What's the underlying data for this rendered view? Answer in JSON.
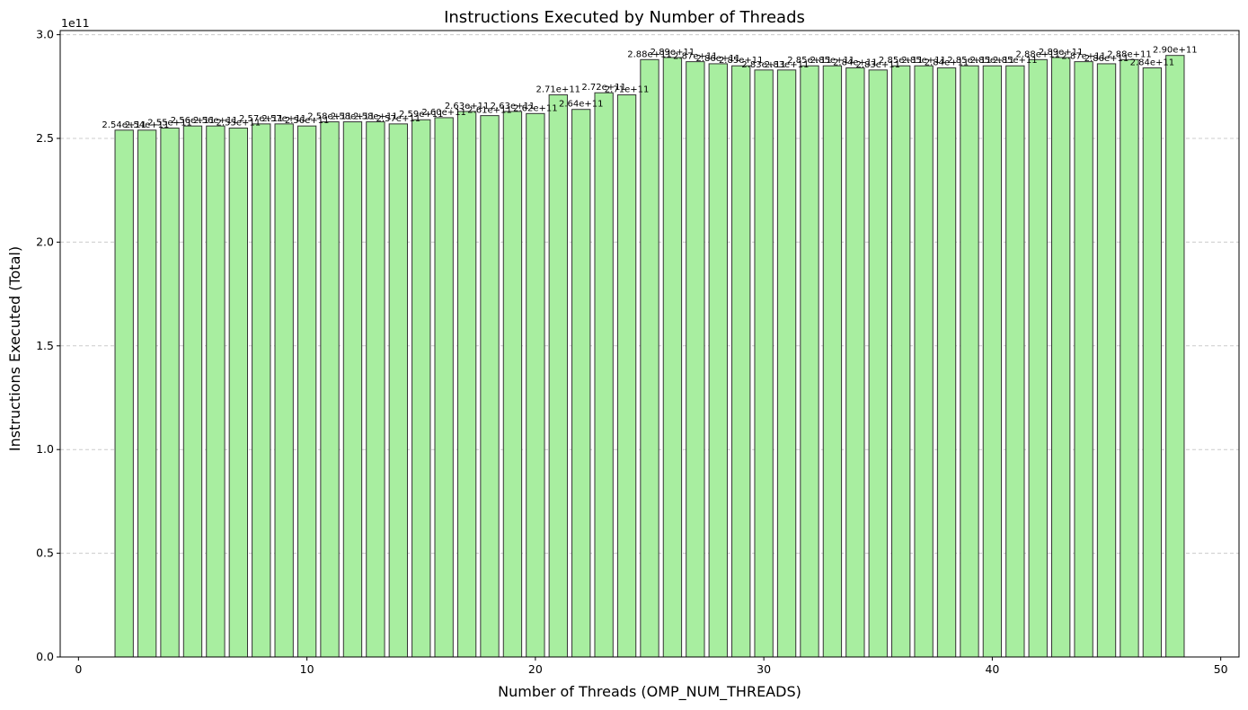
{
  "chart_data": {
    "type": "bar",
    "title": "Instructions Executed by Number of Threads",
    "xlabel": "Number of Threads (OMP_NUM_THREADS)",
    "ylabel": "Instructions Executed (Total)",
    "y_offset_label": "1e11",
    "xlim": [
      -0.8,
      50.8
    ],
    "ylim": [
      0,
      302000000000.0
    ],
    "x_ticks": [
      0,
      10,
      20,
      30,
      40,
      50
    ],
    "y_ticks": [
      0,
      50000000000.0,
      100000000000.0,
      150000000000.0,
      200000000000.0,
      250000000000.0,
      300000000000.0
    ],
    "y_tick_labels": [
      "0.0",
      "0.5",
      "1.0",
      "1.5",
      "2.0",
      "2.5",
      "3.0"
    ],
    "grid": "horizontal dashed",
    "bar_color": "#a8eea0",
    "bar_edge_color": "#333333",
    "x": [
      2,
      3,
      4,
      5,
      6,
      7,
      8,
      9,
      10,
      11,
      12,
      13,
      14,
      15,
      16,
      17,
      18,
      19,
      20,
      21,
      22,
      23,
      24,
      25,
      26,
      27,
      28,
      29,
      30,
      31,
      32,
      33,
      34,
      35,
      36,
      37,
      38,
      39,
      40,
      41,
      42,
      43,
      44,
      45,
      46,
      47,
      48
    ],
    "values": [
      254000000000.0,
      254000000000.0,
      255000000000.0,
      256000000000.0,
      256000000000.0,
      255000000000.0,
      257000000000.0,
      257000000000.0,
      256000000000.0,
      258000000000.0,
      258000000000.0,
      258000000000.0,
      257000000000.0,
      259000000000.0,
      260000000000.0,
      263000000000.0,
      261000000000.0,
      263000000000.0,
      262000000000.0,
      271000000000.0,
      264000000000.0,
      272000000000.0,
      271000000000.0,
      288000000000.0,
      289000000000.0,
      287000000000.0,
      286000000000.0,
      285000000000.0,
      283000000000.0,
      283000000000.0,
      285000000000.0,
      285000000000.0,
      284000000000.0,
      283000000000.0,
      285000000000.0,
      285000000000.0,
      284000000000.0,
      285000000000.0,
      285000000000.0,
      285000000000.0,
      288000000000.0,
      289000000000.0,
      287000000000.0,
      286000000000.0,
      288000000000.0,
      284000000000.0,
      290000000000.0
    ],
    "data_labels": [
      "2.54e+11",
      "2.54e+11",
      "2.55e+11",
      "2.56e+11",
      "2.56e+11",
      "2.55e+11",
      "2.57e+11",
      "2.57e+11",
      "2.56e+11",
      "2.58e+11",
      "2.58e+11",
      "2.58e+11",
      "2.57e+11",
      "2.59e+11",
      "2.60e+11",
      "2.63e+11",
      "2.61e+11",
      "2.63e+11",
      "2.62e+11",
      "2.71e+11",
      "2.64e+11",
      "2.72e+11",
      "2.71e+11",
      "2.88e+11",
      "2.89e+11",
      "2.87e+11",
      "2.86e+11",
      "2.85e+11",
      "2.83e+11",
      "2.83e+11",
      "2.85e+11",
      "2.85e+11",
      "2.84e+11",
      "2.83e+11",
      "2.85e+11",
      "2.85e+11",
      "2.84e+11",
      "2.85e+11",
      "2.85e+11",
      "2.85e+11",
      "2.88e+11",
      "2.89e+11",
      "2.87e+11",
      "2.86e+11",
      "2.88e+11",
      "2.84e+11",
      "2.90e+11"
    ]
  }
}
